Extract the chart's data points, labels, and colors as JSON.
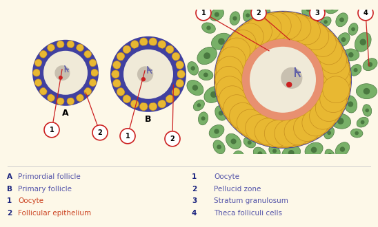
{
  "bg_color": "#fdf8e8",
  "diagram_bg": "#fdf8e8",
  "legend_left": [
    [
      "A",
      "Primordial follicle",
      "#2b3a8f"
    ],
    [
      "B",
      "Primary follicle",
      "#2b3a8f"
    ],
    [
      "1",
      "Oocyte",
      "#e05a2b"
    ],
    [
      "2",
      "Follicular epithelium",
      "#e05a2b"
    ]
  ],
  "legend_right": [
    [
      "1",
      "Oocyte",
      "#5a5a8f"
    ],
    [
      "2",
      "Pellucid zone",
      "#5a5a8f"
    ],
    [
      "3",
      "Stratum granulosum",
      "#5a5a8f"
    ],
    [
      "4",
      "Theca folliculi cells",
      "#5a5a8f"
    ]
  ],
  "oocyte_fill": "#f0ead8",
  "nucleus_gray": "#c8c0b0",
  "nucleus_stroke": "#6060a8",
  "yellow_cell": "#e8b832",
  "yellow_cell_border": "#c89020",
  "purple_border": "#4040a0",
  "pink_zona": "#e89070",
  "green_cell": "#78b068",
  "green_cell_dark": "#4a7840",
  "red_dot": "#cc2020",
  "callout_line": "#cc2020",
  "callout_bg": "#ffffff",
  "callout_border": "#cc2020"
}
